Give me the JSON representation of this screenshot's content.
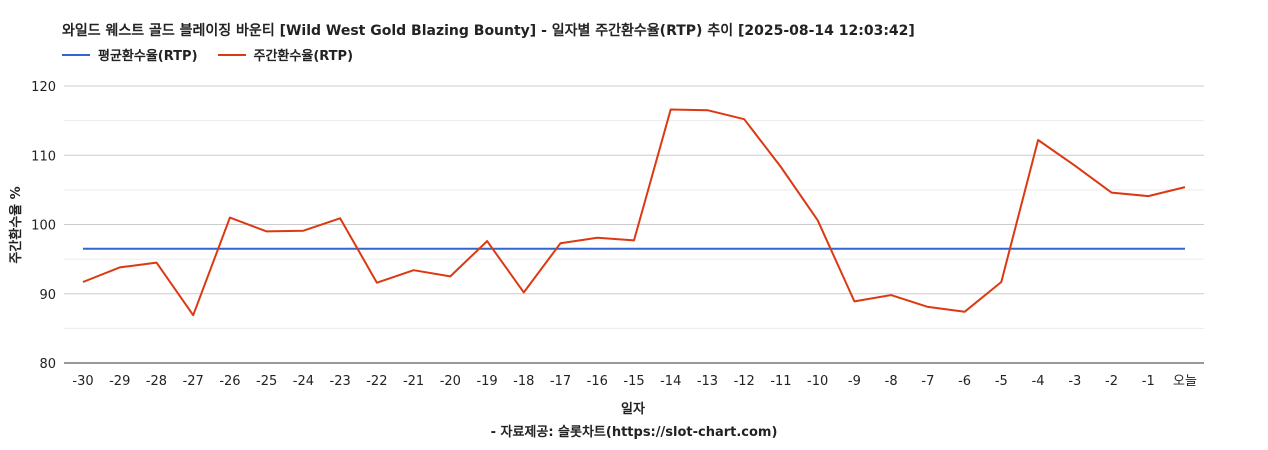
{
  "chart_data": {
    "type": "line",
    "title": "와일드 웨스트 골드 블레이징 바운티 [Wild West Gold Blazing Bounty] - 일자별 주간환수율(RTP) 추이 [2025-08-14 12:03:42]",
    "xlabel": "일자",
    "ylabel": "주간환수율 %",
    "ylim": [
      80,
      120
    ],
    "yticks": [
      "80",
      "90",
      "100",
      "110",
      "120"
    ],
    "grid": true,
    "legend_position": "top-left",
    "categories": [
      "-30",
      "-29",
      "-28",
      "-27",
      "-26",
      "-25",
      "-24",
      "-23",
      "-22",
      "-21",
      "-20",
      "-19",
      "-18",
      "-17",
      "-16",
      "-15",
      "-14",
      "-13",
      "-12",
      "-11",
      "-10",
      "-9",
      "-8",
      "-7",
      "-6",
      "-5",
      "-4",
      "-3",
      "-2",
      "-1",
      "오늘"
    ],
    "series": [
      {
        "name": "평균환수율(RTP)",
        "color": "#3366cc",
        "values": [
          96.5,
          96.5,
          96.5,
          96.5,
          96.5,
          96.5,
          96.5,
          96.5,
          96.5,
          96.5,
          96.5,
          96.5,
          96.5,
          96.5,
          96.5,
          96.5,
          96.5,
          96.5,
          96.5,
          96.5,
          96.5,
          96.5,
          96.5,
          96.5,
          96.5,
          96.5,
          96.5,
          96.5,
          96.5,
          96.5,
          96.5
        ]
      },
      {
        "name": "주간환수율(RTP)",
        "color": "#dc3912",
        "values": [
          91.7,
          93.8,
          94.5,
          86.9,
          101.0,
          99.0,
          99.1,
          100.9,
          91.6,
          93.4,
          92.5,
          97.6,
          90.2,
          97.3,
          98.1,
          97.7,
          116.6,
          116.5,
          115.2,
          108.3,
          100.6,
          88.9,
          89.8,
          88.1,
          87.4,
          91.7,
          112.2,
          108.5,
          104.6,
          104.1,
          105.4
        ]
      }
    ],
    "footer": "- 자료제공: 슬롯차트(https://slot-chart.com)"
  }
}
